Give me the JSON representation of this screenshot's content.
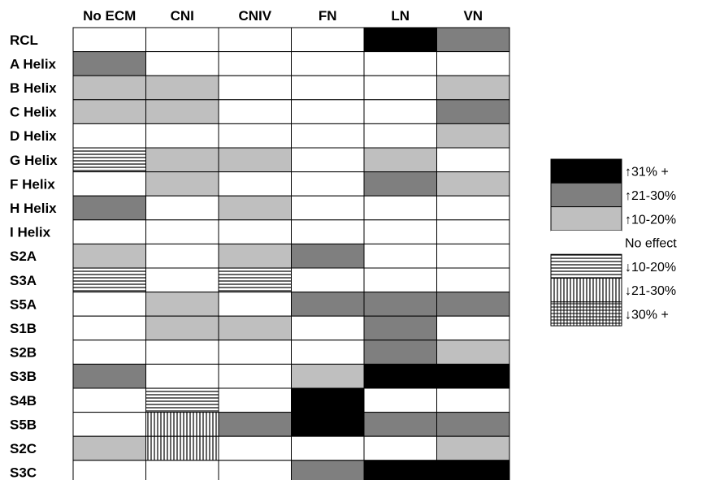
{
  "chart_data": {
    "type": "heatmap",
    "columns": [
      "No ECM",
      "CNI",
      "CNIV",
      "FN",
      "LN",
      "VN"
    ],
    "rows": [
      "RCL",
      "A Helix",
      "B Helix",
      "C Helix",
      "D Helix",
      "G Helix",
      "F Helix",
      "H Helix",
      "I Helix",
      "S2A",
      "S3A",
      "S5A",
      "S1B",
      "S2B",
      "S3B",
      "S4B",
      "S5B",
      "S2C",
      "S3C"
    ],
    "legend": [
      {
        "key": "up31",
        "label": "↑31% +",
        "fill": "#000000"
      },
      {
        "key": "up21",
        "label": "↑21-30%",
        "fill": "#7f7f7f"
      },
      {
        "key": "up10",
        "label": "↑10-20%",
        "fill": "#bfbfbf"
      },
      {
        "key": "none",
        "label": "No effect",
        "fill": "#ffffff"
      },
      {
        "key": "down10",
        "label": "↓10-20%",
        "pattern": "horizontal-lines"
      },
      {
        "key": "down21",
        "label": "↓21-30%",
        "pattern": "vertical-lines"
      },
      {
        "key": "down30",
        "label": "↓30% +",
        "pattern": "grid"
      }
    ],
    "cells": [
      [
        "none",
        "none",
        "none",
        "none",
        "up31",
        "up21"
      ],
      [
        "up21",
        "none",
        "none",
        "none",
        "none",
        "none"
      ],
      [
        "up10",
        "up10",
        "none",
        "none",
        "none",
        "up10"
      ],
      [
        "up10",
        "up10",
        "none",
        "none",
        "none",
        "up21"
      ],
      [
        "none",
        "none",
        "none",
        "none",
        "none",
        "up10"
      ],
      [
        "down10",
        "up10",
        "up10",
        "none",
        "up10",
        "none"
      ],
      [
        "none",
        "up10",
        "none",
        "none",
        "up21",
        "up10"
      ],
      [
        "up21",
        "none",
        "up10",
        "none",
        "none",
        "none"
      ],
      [
        "none",
        "none",
        "none",
        "none",
        "none",
        "none"
      ],
      [
        "up10",
        "none",
        "up10",
        "up21",
        "none",
        "none"
      ],
      [
        "down10",
        "none",
        "down10",
        "none",
        "none",
        "none"
      ],
      [
        "none",
        "up10",
        "none",
        "up21",
        "up21",
        "up21"
      ],
      [
        "none",
        "up10",
        "up10",
        "none",
        "up21",
        "none"
      ],
      [
        "none",
        "none",
        "none",
        "none",
        "up21",
        "up10"
      ],
      [
        "up21",
        "none",
        "none",
        "up10",
        "up31",
        "up31"
      ],
      [
        "none",
        "down10",
        "none",
        "up31",
        "none",
        "none"
      ],
      [
        "none",
        "down21",
        "up21",
        "up31",
        "up21",
        "up21"
      ],
      [
        "up10",
        "down21",
        "none",
        "none",
        "none",
        "up10"
      ],
      [
        "none",
        "none",
        "none",
        "up21",
        "up31",
        "up31"
      ]
    ]
  }
}
